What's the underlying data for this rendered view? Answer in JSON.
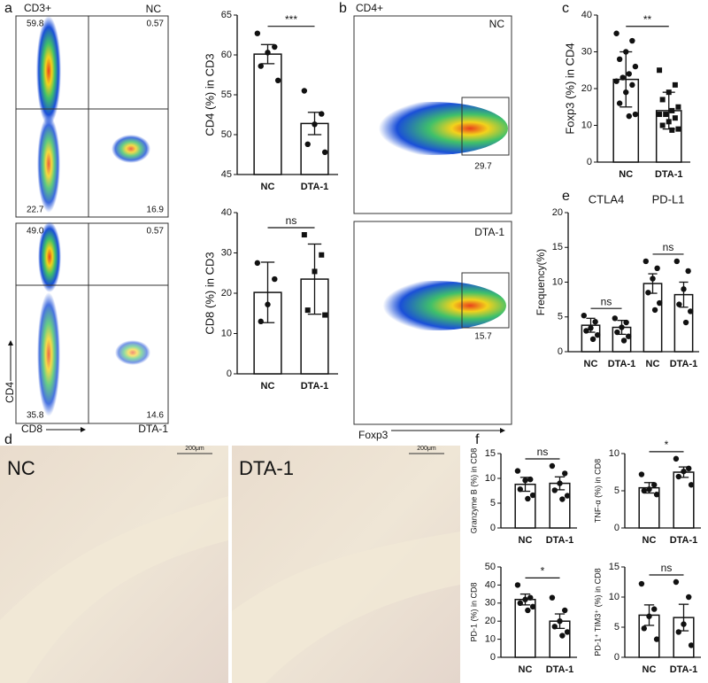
{
  "panel_letters": [
    "a",
    "b",
    "c",
    "d",
    "e",
    "f"
  ],
  "flow_cd4_cd8": {
    "gate": "CD3+",
    "x_label": "CD8",
    "y_label": "CD4",
    "plots": [
      {
        "name": "NC",
        "quadrants": [
          "59.8",
          "0.57",
          "22.7",
          "16.9"
        ]
      },
      {
        "name": "DTA-1",
        "quadrants": [
          "49.0",
          "0.57",
          "35.8",
          "14.6"
        ]
      }
    ]
  },
  "flow_foxp3": {
    "gate": "CD4+",
    "x_label": "Foxp3",
    "plots": [
      {
        "name": "NC",
        "gate_value": "29.7"
      },
      {
        "name": "DTA-1",
        "gate_value": "15.7"
      }
    ]
  },
  "histology": {
    "images": [
      {
        "name": "NC",
        "scale": "200μm"
      },
      {
        "name": "DTA-1",
        "scale": "200μm"
      }
    ]
  },
  "chart_data": [
    {
      "type": "bar",
      "y_label": "CD4 (%) in CD3",
      "categories": [
        "NC",
        "DTA-1"
      ],
      "values": [
        60.1,
        51.4
      ],
      "errors": [
        1.2,
        1.4
      ],
      "points": [
        [
          62.7,
          61,
          60.3,
          58.6,
          56.8
        ],
        [
          55.5,
          52.6,
          51.3,
          48.8,
          47.8
        ]
      ],
      "markers": [
        "circle",
        "circle"
      ],
      "significance": [
        "***"
      ],
      "ylim": [
        45,
        65
      ],
      "yticks": [
        45,
        50,
        55,
        60,
        65
      ]
    },
    {
      "type": "bar",
      "y_label": "CD8 (%) in CD3",
      "categories": [
        "NC",
        "DTA-1"
      ],
      "values": [
        20.2,
        23.5
      ],
      "errors": [
        7.5,
        8.7
      ],
      "points": [
        [
          27.5,
          23.5,
          17.2,
          13
        ],
        [
          34.5,
          29.5,
          25.4,
          15.8,
          14.6
        ]
      ],
      "markers": [
        "circle",
        "square"
      ],
      "significance": [
        "ns"
      ],
      "ylim": [
        0,
        40
      ],
      "yticks": [
        0,
        10,
        20,
        30,
        40
      ]
    },
    {
      "type": "bar",
      "y_label": "Foxp3 (%) in CD4",
      "categories": [
        "NC",
        "DTA-1"
      ],
      "values": [
        22.5,
        14
      ],
      "errors": [
        7.5,
        5
      ],
      "points": [
        [
          35,
          33,
          30,
          28,
          26,
          24,
          23,
          22,
          21,
          19,
          16,
          13,
          12.5
        ],
        [
          25,
          21,
          19,
          17,
          15,
          14,
          13,
          13,
          12,
          11,
          10,
          9,
          8.7
        ]
      ],
      "markers": [
        "circle",
        "square"
      ],
      "significance": [
        "**"
      ],
      "ylim": [
        0,
        40
      ],
      "yticks": [
        0,
        10,
        20,
        30,
        40
      ]
    },
    {
      "type": "bar",
      "y_label": "Frequency(%)",
      "groups": [
        "CTLA4",
        "PD-L1"
      ],
      "categories": [
        "NC",
        "DTA-1",
        "NC",
        "DTA-1"
      ],
      "values": [
        3.8,
        3.5,
        9.8,
        8.2
      ],
      "errors": [
        1.0,
        1.0,
        1.4,
        1.8
      ],
      "points": [
        [
          5.2,
          4.3,
          3.4,
          3,
          2.4,
          1.8
        ],
        [
          4.8,
          4.2,
          3.5,
          2.8,
          2.2,
          1.6
        ],
        [
          13,
          12,
          10.5,
          8.5,
          7,
          6
        ],
        [
          13,
          11.6,
          9,
          6.8,
          5.8,
          4.2
        ]
      ],
      "markers": [
        "circle",
        "circle",
        "circle",
        "circle"
      ],
      "significance": [
        "ns",
        "ns"
      ],
      "ylim": [
        0,
        20
      ],
      "yticks": [
        0,
        5,
        10,
        15,
        20
      ]
    },
    {
      "type": "bar",
      "y_label": "Granzyme B (%) in CD8",
      "categories": [
        "NC",
        "DTA-1"
      ],
      "values": [
        8.8,
        9.0
      ],
      "errors": [
        1.4,
        1.3
      ],
      "points": [
        [
          11.5,
          9.8,
          9.6,
          7.8,
          6.6,
          5.9
        ],
        [
          12.5,
          11,
          9,
          7.6,
          6.5,
          5.8
        ]
      ],
      "markers": [
        "circle",
        "circle"
      ],
      "significance": [
        "ns"
      ],
      "ylim": [
        0,
        15
      ],
      "yticks": [
        0,
        5,
        10,
        15
      ]
    },
    {
      "type": "bar",
      "y_label": "TNF-α (%) in CD8",
      "categories": [
        "NC",
        "DTA-1"
      ],
      "values": [
        5.4,
        7.5
      ],
      "errors": [
        0.7,
        0.7
      ],
      "points": [
        [
          7.2,
          5.8,
          5.2,
          5,
          4.5
        ],
        [
          9.3,
          8,
          7.6,
          6.9,
          5.8
        ]
      ],
      "markers": [
        "circle",
        "circle"
      ],
      "significance": [
        "*"
      ],
      "ylim": [
        0,
        10
      ],
      "yticks": [
        0,
        5,
        10
      ]
    },
    {
      "type": "bar",
      "y_label": "PD-1 (%) in CD8",
      "categories": [
        "NC",
        "DTA-1"
      ],
      "values": [
        32,
        20
      ],
      "errors": [
        3,
        4
      ],
      "points": [
        [
          40,
          33,
          32,
          30,
          28,
          26
        ],
        [
          33,
          26,
          20,
          17,
          14,
          12
        ]
      ],
      "markers": [
        "circle",
        "circle"
      ],
      "significance": [
        "*"
      ],
      "ylim": [
        0,
        50
      ],
      "yticks": [
        0,
        10,
        20,
        30,
        40,
        50
      ]
    },
    {
      "type": "bar",
      "y_label": "PD-1⁺ TIM3⁺ (%) in CD8",
      "categories": [
        "NC",
        "DTA-1"
      ],
      "values": [
        7,
        6.6
      ],
      "errors": [
        1.7,
        2.2
      ],
      "points": [
        [
          12.2,
          8,
          6.8,
          4.8,
          3
        ],
        [
          12.5,
          10,
          5.5,
          4.2,
          2
        ]
      ],
      "markers": [
        "circle",
        "circle"
      ],
      "significance": [
        "ns"
      ],
      "ylim": [
        0,
        15
      ],
      "yticks": [
        0,
        5,
        10,
        15
      ]
    }
  ]
}
